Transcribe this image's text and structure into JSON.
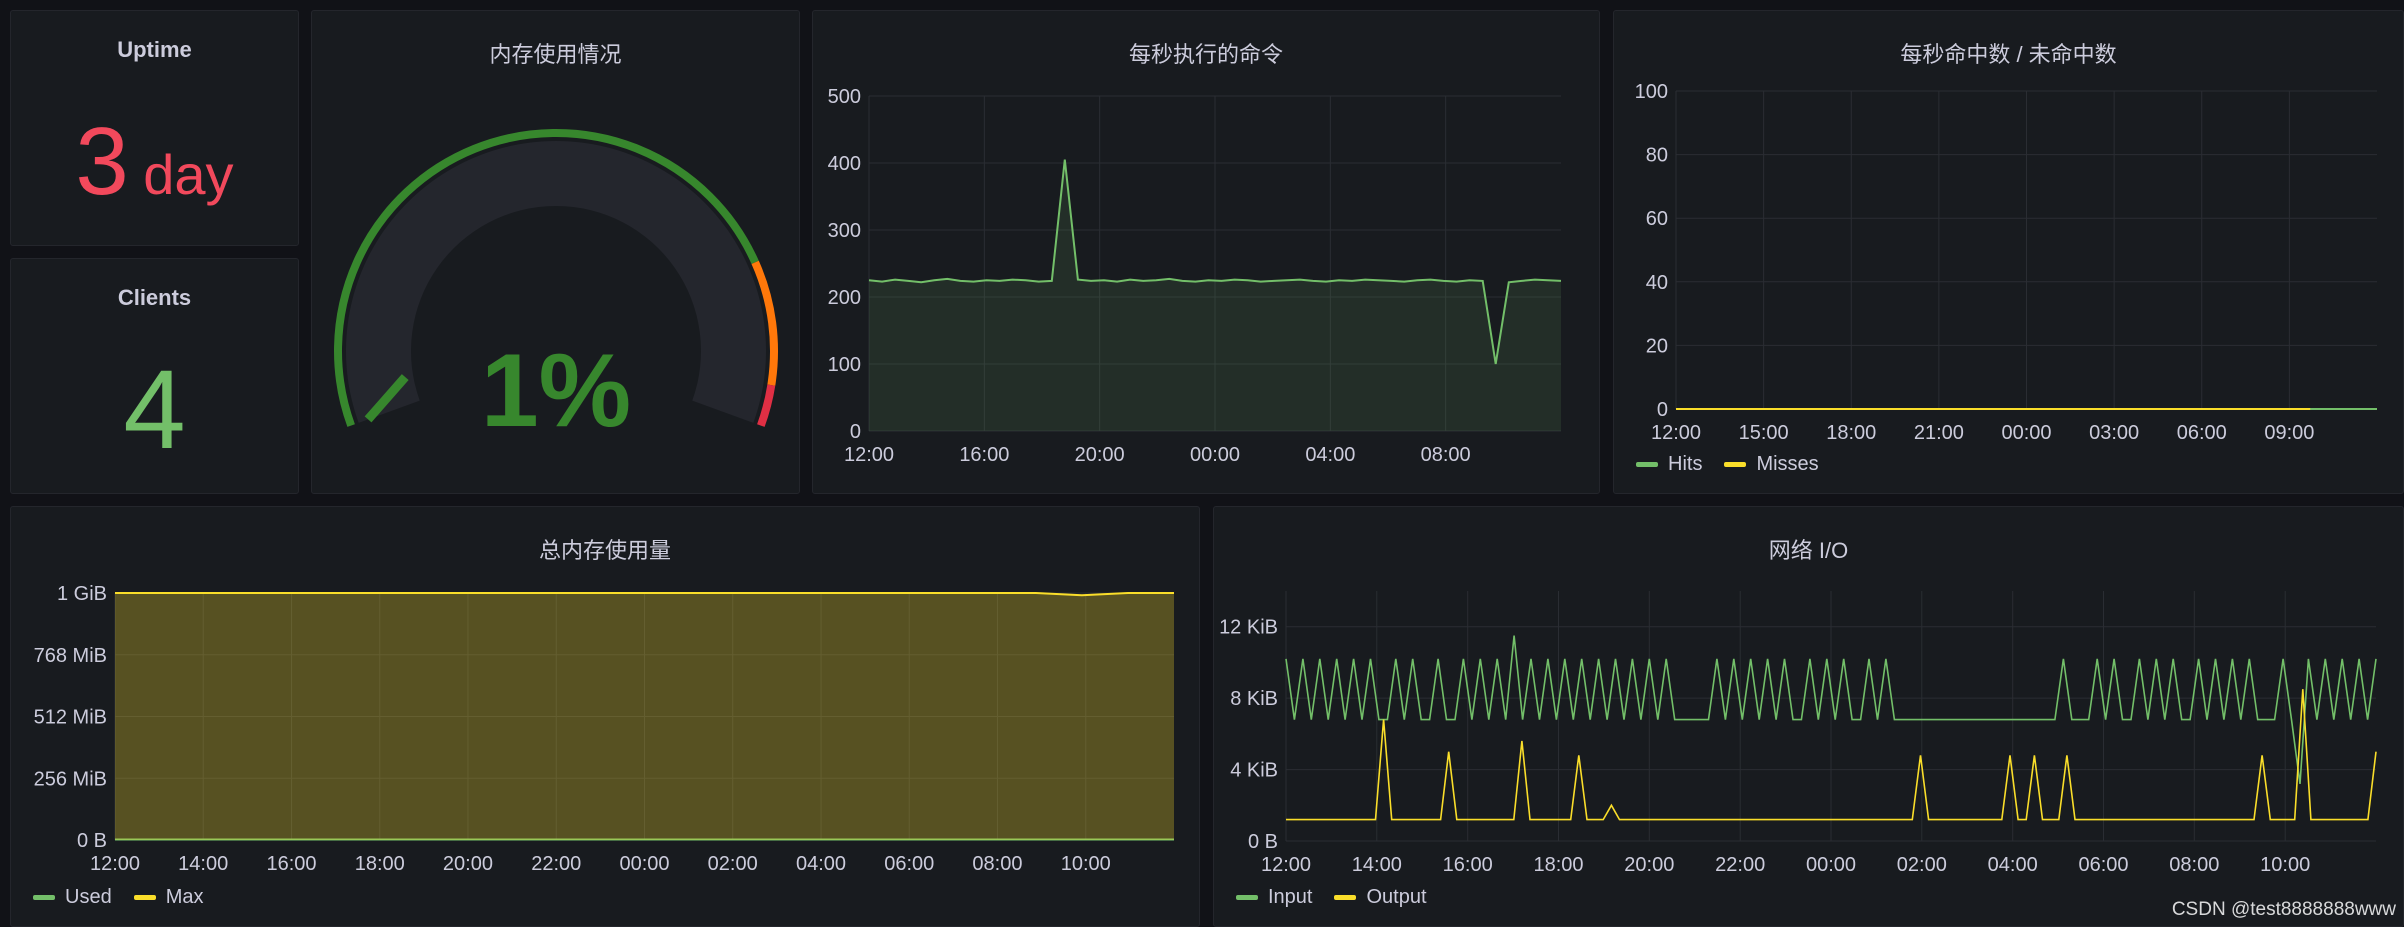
{
  "colors": {
    "green": "#73bf69",
    "yellow": "#fade2a",
    "red": "#f2495c",
    "orange": "#ff780a",
    "gauge_green": "#37872d"
  },
  "uptime": {
    "title": "Uptime",
    "value": "3",
    "unit": "day"
  },
  "clients": {
    "title": "Clients",
    "value": "4"
  },
  "memory_gauge": {
    "title": "内存使用情况",
    "value": "1%",
    "percent": 1,
    "thresholds": [
      {
        "from": 0,
        "to": 80,
        "color": "#37872d"
      },
      {
        "from": 80,
        "to": 95,
        "color": "#ff780a"
      },
      {
        "from": 95,
        "to": 100,
        "color": "#e02f44"
      }
    ]
  },
  "cmds": {
    "title": "每秒执行的命令"
  },
  "hits": {
    "title": "每秒命中数 / 未命中数"
  },
  "total_mem": {
    "title": "总内存使用量"
  },
  "netio": {
    "title": "网络 I/O"
  },
  "watermark": "CSDN @test8888888www",
  "chart_data": [
    {
      "id": "cmds",
      "type": "line",
      "title": "每秒执行的命令",
      "x_ticks": [
        "12:00",
        "16:00",
        "20:00",
        "00:00",
        "04:00",
        "08:00"
      ],
      "y_ticks": [
        "0",
        "100",
        "200",
        "300",
        "400",
        "500"
      ],
      "ylim": [
        0,
        500
      ],
      "grid": true,
      "series": [
        {
          "values": [
            225,
            223,
            226,
            224,
            222,
            225,
            227,
            224,
            223,
            225,
            224,
            226,
            225,
            223,
            224,
            405,
            226,
            224,
            225,
            223,
            226,
            224,
            225,
            227,
            224,
            223,
            225,
            224,
            226,
            225,
            223,
            224,
            225,
            226,
            224,
            223,
            225,
            224,
            226,
            225,
            224,
            223,
            225,
            226,
            224,
            223,
            225,
            224,
            100,
            222,
            224,
            226,
            225,
            224
          ]
        }
      ]
    },
    {
      "id": "hits",
      "type": "line",
      "title": "每秒命中数 / 未命中数",
      "x_ticks": [
        "12:00",
        "15:00",
        "18:00",
        "21:00",
        "00:00",
        "03:00",
        "06:00",
        "09:00"
      ],
      "y_ticks": [
        "0",
        "20",
        "40",
        "60",
        "80",
        "100"
      ],
      "ylim": [
        0,
        100
      ],
      "grid": true,
      "legend": "bottom-left",
      "series": [
        {
          "name": "Hits",
          "values": [
            0,
            0,
            0,
            0,
            0,
            0,
            0,
            0,
            0,
            0,
            0,
            0,
            0,
            0,
            0,
            0,
            0,
            0,
            0,
            0,
            0,
            0
          ]
        },
        {
          "name": "Misses",
          "values": [
            0,
            0,
            0,
            0,
            0,
            0,
            0,
            0,
            0,
            0,
            0,
            0,
            0,
            0,
            0,
            0,
            0,
            0,
            0,
            0,
            null,
            0
          ]
        }
      ]
    },
    {
      "id": "total_mem",
      "type": "area",
      "title": "总内存使用量",
      "x_ticks": [
        "12:00",
        "14:00",
        "16:00",
        "18:00",
        "20:00",
        "22:00",
        "00:00",
        "02:00",
        "04:00",
        "06:00",
        "08:00",
        "10:00"
      ],
      "y_ticks": [
        "0 B",
        "256 MiB",
        "512 MiB",
        "768 MiB",
        "1 GiB"
      ],
      "ylim": [
        0,
        1024
      ],
      "grid": true,
      "legend": "bottom-left",
      "series": [
        {
          "name": "Used",
          "values": [
            2,
            2,
            2,
            2,
            2,
            2,
            2,
            2,
            2,
            2,
            2,
            2,
            2,
            2,
            2,
            2,
            2,
            2,
            2,
            2,
            2,
            2,
            2,
            2
          ]
        },
        {
          "name": "Max",
          "values": [
            1024,
            1024,
            1024,
            1024,
            1024,
            1024,
            1024,
            1024,
            1024,
            1024,
            1024,
            1024,
            1024,
            1024,
            1024,
            1024,
            1024,
            1024,
            1024,
            1024,
            1024,
            1015,
            1024,
            1024
          ]
        }
      ]
    },
    {
      "id": "netio",
      "type": "line",
      "title": "网络 I/O",
      "x_ticks": [
        "12:00",
        "14:00",
        "16:00",
        "18:00",
        "20:00",
        "22:00",
        "00:00",
        "02:00",
        "04:00",
        "06:00",
        "08:00",
        "10:00"
      ],
      "y_ticks": [
        "0 B",
        "4 KiB",
        "8 KiB",
        "12 KiB"
      ],
      "ylim": [
        0,
        14
      ],
      "grid": true,
      "legend": "bottom-left",
      "series": [
        {
          "name": "Input",
          "values": [
            10.2,
            6.8,
            10.2,
            6.8,
            10.2,
            6.8,
            10.2,
            6.8,
            10.2,
            6.8,
            10.2,
            6.8,
            6.8,
            10.2,
            6.8,
            10.2,
            6.8,
            6.8,
            10.2,
            6.8,
            6.8,
            10.2,
            6.8,
            10.2,
            6.8,
            10.2,
            6.8,
            11.5,
            6.8,
            10.2,
            6.8,
            10.2,
            6.8,
            10.2,
            6.8,
            10.2,
            6.8,
            10.2,
            6.8,
            10.2,
            6.8,
            10.2,
            6.8,
            10.2,
            6.8,
            10.2,
            6.8,
            6.8,
            6.8,
            6.8,
            6.8,
            10.2,
            6.8,
            10.2,
            6.8,
            10.2,
            6.8,
            10.2,
            6.8,
            10.2,
            6.8,
            6.8,
            10.2,
            6.8,
            10.2,
            6.8,
            10.2,
            6.8,
            6.8,
            10.2,
            6.8,
            10.2,
            6.8,
            6.8,
            6.8,
            6.8,
            6.8,
            6.8,
            6.8,
            6.8,
            6.8,
            6.8,
            6.8,
            6.8,
            6.8,
            6.8,
            6.8,
            6.8,
            6.8,
            6.8,
            6.8,
            6.8,
            10.2,
            6.8,
            6.8,
            6.8,
            10.2,
            6.8,
            10.2,
            6.8,
            6.8,
            10.2,
            6.8,
            10.2,
            6.8,
            10.2,
            6.8,
            6.8,
            10.2,
            6.8,
            10.2,
            6.8,
            10.2,
            6.8,
            10.2,
            6.8,
            6.8,
            6.8,
            10.2,
            6.8,
            3.2,
            10.2,
            6.8,
            10.2,
            6.8,
            10.2,
            6.8,
            10.2,
            6.8,
            10.2
          ]
        },
        {
          "name": "Output",
          "values": [
            1.2,
            1.2,
            1.2,
            1.2,
            1.2,
            1.2,
            1.2,
            1.2,
            1.2,
            1.2,
            1.2,
            1.2,
            6.8,
            1.2,
            1.2,
            1.2,
            1.2,
            1.2,
            1.2,
            1.2,
            5,
            1.2,
            1.2,
            1.2,
            1.2,
            1.2,
            1.2,
            1.2,
            1.2,
            5.6,
            1.2,
            1.2,
            1.2,
            1.2,
            1.2,
            1.2,
            4.8,
            1.2,
            1.2,
            1.2,
            2,
            1.2,
            1.2,
            1.2,
            1.2,
            1.2,
            1.2,
            1.2,
            1.2,
            1.2,
            1.2,
            1.2,
            1.2,
            1.2,
            1.2,
            1.2,
            1.2,
            1.2,
            1.2,
            1.2,
            1.2,
            1.2,
            1.2,
            1.2,
            1.2,
            1.2,
            1.2,
            1.2,
            1.2,
            1.2,
            1.2,
            1.2,
            1.2,
            1.2,
            1.2,
            1.2,
            1.2,
            1.2,
            4.8,
            1.2,
            1.2,
            1.2,
            1.2,
            1.2,
            1.2,
            1.2,
            1.2,
            1.2,
            1.2,
            4.8,
            1.2,
            1.2,
            4.8,
            1.2,
            1.2,
            1.2,
            4.8,
            1.2,
            1.2,
            1.2,
            1.2,
            1.2,
            1.2,
            1.2,
            1.2,
            1.2,
            1.2,
            1.2,
            1.2,
            1.2,
            1.2,
            1.2,
            1.2,
            1.2,
            1.2,
            1.2,
            1.2,
            1.2,
            1.2,
            1.2,
            4.8,
            1.2,
            1.2,
            1.2,
            1.2,
            8.5,
            1.2,
            1.2,
            1.2,
            1.2,
            1.2,
            1.2,
            1.2,
            1.2,
            5
          ]
        }
      ]
    }
  ]
}
